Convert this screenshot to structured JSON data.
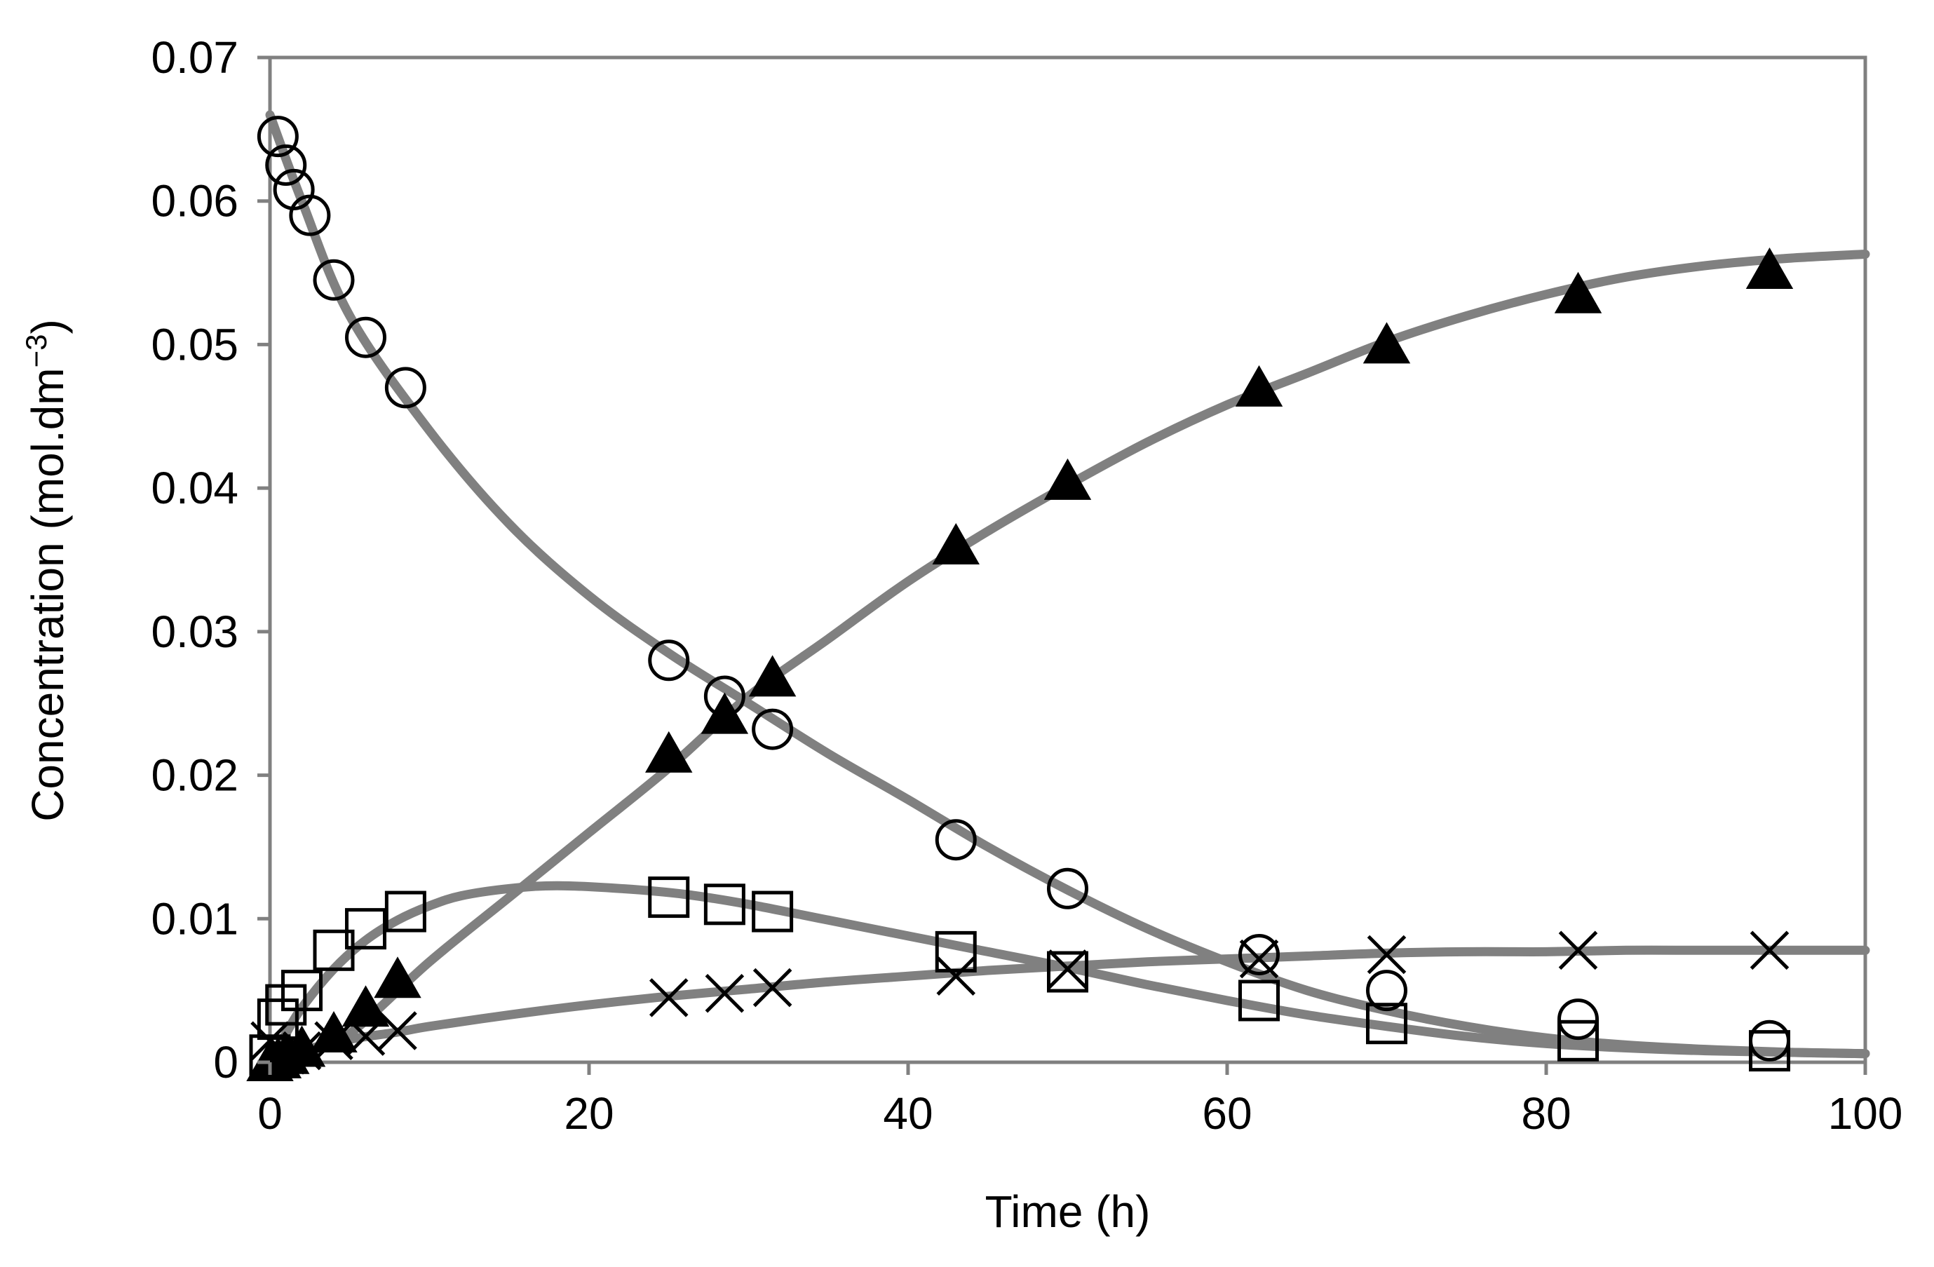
{
  "chart_data": {
    "type": "scatter",
    "title": "",
    "xlabel": "Time (h)",
    "ylabel_main": "Concentration (mol.dm",
    "ylabel_sup": "−3",
    "ylabel_close": ")",
    "xlim": [
      0,
      100
    ],
    "ylim": [
      0,
      0.07
    ],
    "x_ticks": [
      0,
      20,
      40,
      60,
      80,
      100
    ],
    "x_tick_labels": [
      "0",
      "20",
      "40",
      "60",
      "80",
      "100"
    ],
    "y_ticks": [
      0,
      0.01,
      0.02,
      0.03,
      0.04,
      0.05,
      0.06,
      0.07
    ],
    "y_tick_labels": [
      "0",
      "0.01",
      "0.02",
      "0.03",
      "0.04",
      "0.05",
      "0.06",
      "0.07"
    ],
    "grid": false,
    "colors": {
      "fit_line": "#808080",
      "marker": "#000000",
      "background": "#ffffff"
    },
    "series": [
      {
        "name": "open circles",
        "marker": "circle",
        "x": [
          0.5,
          1,
          1.5,
          2.5,
          4,
          6,
          8.5,
          25,
          28.5,
          31.5,
          43,
          50,
          62,
          70,
          82,
          94
        ],
        "y": [
          0.0645,
          0.0625,
          0.0608,
          0.059,
          0.0545,
          0.0505,
          0.047,
          0.028,
          0.0255,
          0.0232,
          0.0155,
          0.0121,
          0.0075,
          0.005,
          0.003,
          0.0015
        ]
      },
      {
        "name": "filled triangles",
        "marker": "triangle",
        "x": [
          0,
          0.5,
          1,
          2,
          4,
          6,
          8,
          25,
          28.5,
          31.5,
          43,
          50,
          62,
          70,
          82,
          94
        ],
        "y": [
          0.0,
          0.0002,
          0.0005,
          0.001,
          0.002,
          0.0038,
          0.0058,
          0.0215,
          0.0242,
          0.0268,
          0.036,
          0.0405,
          0.047,
          0.05,
          0.0535,
          0.0552
        ]
      },
      {
        "name": "open squares",
        "marker": "square",
        "x": [
          0,
          0.5,
          1,
          2,
          4,
          6,
          8.5,
          25,
          28.5,
          31.5,
          43,
          50,
          62,
          70,
          82,
          94
        ],
        "y": [
          0.0005,
          0.003,
          0.004,
          0.005,
          0.0078,
          0.0093,
          0.0105,
          0.0115,
          0.011,
          0.0105,
          0.0077,
          0.0063,
          0.0043,
          0.0027,
          0.0015,
          0.0008
        ]
      },
      {
        "name": "crosses",
        "marker": "cross",
        "x": [
          0,
          1,
          2,
          4,
          6,
          8,
          25,
          28.5,
          31.5,
          43,
          50,
          62,
          70,
          82,
          94
        ],
        "y": [
          0.0015,
          0.0005,
          0.0008,
          0.0015,
          0.0018,
          0.0022,
          0.0045,
          0.0048,
          0.0052,
          0.006,
          0.0065,
          0.0072,
          0.0075,
          0.0078,
          0.0078
        ]
      }
    ],
    "fit_curves": [
      {
        "name": "circles fit",
        "x": [
          0,
          2,
          5,
          10,
          15,
          20,
          25,
          30,
          35,
          40,
          45,
          50,
          55,
          60,
          65,
          70,
          75,
          80,
          85,
          90,
          95,
          100
        ],
        "y": [
          0.066,
          0.06,
          0.052,
          0.044,
          0.0375,
          0.0325,
          0.0285,
          0.025,
          0.0215,
          0.0183,
          0.015,
          0.012,
          0.0093,
          0.007,
          0.005,
          0.0036,
          0.0025,
          0.0017,
          0.0012,
          0.0009,
          0.0007,
          0.0006
        ]
      },
      {
        "name": "triangles fit",
        "x": [
          0,
          2,
          5,
          10,
          15,
          20,
          25,
          30,
          35,
          40,
          45,
          50,
          55,
          60,
          65,
          70,
          75,
          80,
          85,
          90,
          95,
          100
        ],
        "y": [
          0.0,
          0.0005,
          0.002,
          0.007,
          0.0115,
          0.016,
          0.0205,
          0.0255,
          0.0295,
          0.0335,
          0.037,
          0.0402,
          0.0432,
          0.0458,
          0.048,
          0.0502,
          0.052,
          0.0535,
          0.0547,
          0.0555,
          0.056,
          0.0563
        ]
      },
      {
        "name": "squares fit",
        "x": [
          0,
          1,
          2,
          4,
          6,
          8,
          10,
          12,
          15,
          18,
          22,
          26,
          30,
          35,
          40,
          45,
          50,
          55,
          60,
          65,
          70,
          75,
          80,
          85,
          90,
          95,
          100
        ],
        "y": [
          0.0,
          0.002,
          0.0038,
          0.0065,
          0.0085,
          0.0099,
          0.0109,
          0.0116,
          0.0121,
          0.0123,
          0.0121,
          0.0117,
          0.011,
          0.0099,
          0.0088,
          0.0077,
          0.0066,
          0.0054,
          0.0043,
          0.0033,
          0.0025,
          0.0018,
          0.0013,
          0.001,
          0.0008,
          0.0007,
          0.0006
        ]
      },
      {
        "name": "crosses fit",
        "x": [
          0,
          2,
          5,
          8,
          10,
          15,
          20,
          25,
          30,
          35,
          40,
          45,
          50,
          55,
          60,
          65,
          70,
          75,
          80,
          85,
          90,
          95,
          100
        ],
        "y": [
          0.0,
          0.0008,
          0.0016,
          0.0021,
          0.0025,
          0.0033,
          0.004,
          0.0046,
          0.0051,
          0.0056,
          0.006,
          0.0064,
          0.0067,
          0.007,
          0.0072,
          0.0074,
          0.0076,
          0.0077,
          0.0077,
          0.0078,
          0.0078,
          0.0078,
          0.0078
        ]
      }
    ]
  }
}
